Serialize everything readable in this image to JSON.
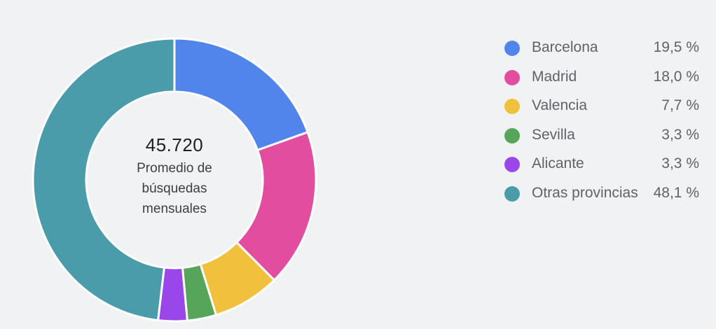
{
  "chart_data": {
    "type": "pie",
    "variant": "donut",
    "categories": [
      "Barcelona",
      "Madrid",
      "Valencia",
      "Sevilla",
      "Alicante",
      "Otras provincias"
    ],
    "values": [
      19.5,
      18.0,
      7.7,
      3.3,
      3.3,
      48.1
    ],
    "value_labels": [
      "19,5 %",
      "18,0 %",
      "7,7 %",
      "3,3 %",
      "3,3 %",
      "48,1 %"
    ],
    "colors": [
      "#5285ec",
      "#e24d9f",
      "#f1c13e",
      "#57a55a",
      "#9a47ea",
      "#4a9caa"
    ],
    "legend_position": "right",
    "center_value": "45.720",
    "center_caption": "Promedio de búsquedas mensuales"
  }
}
